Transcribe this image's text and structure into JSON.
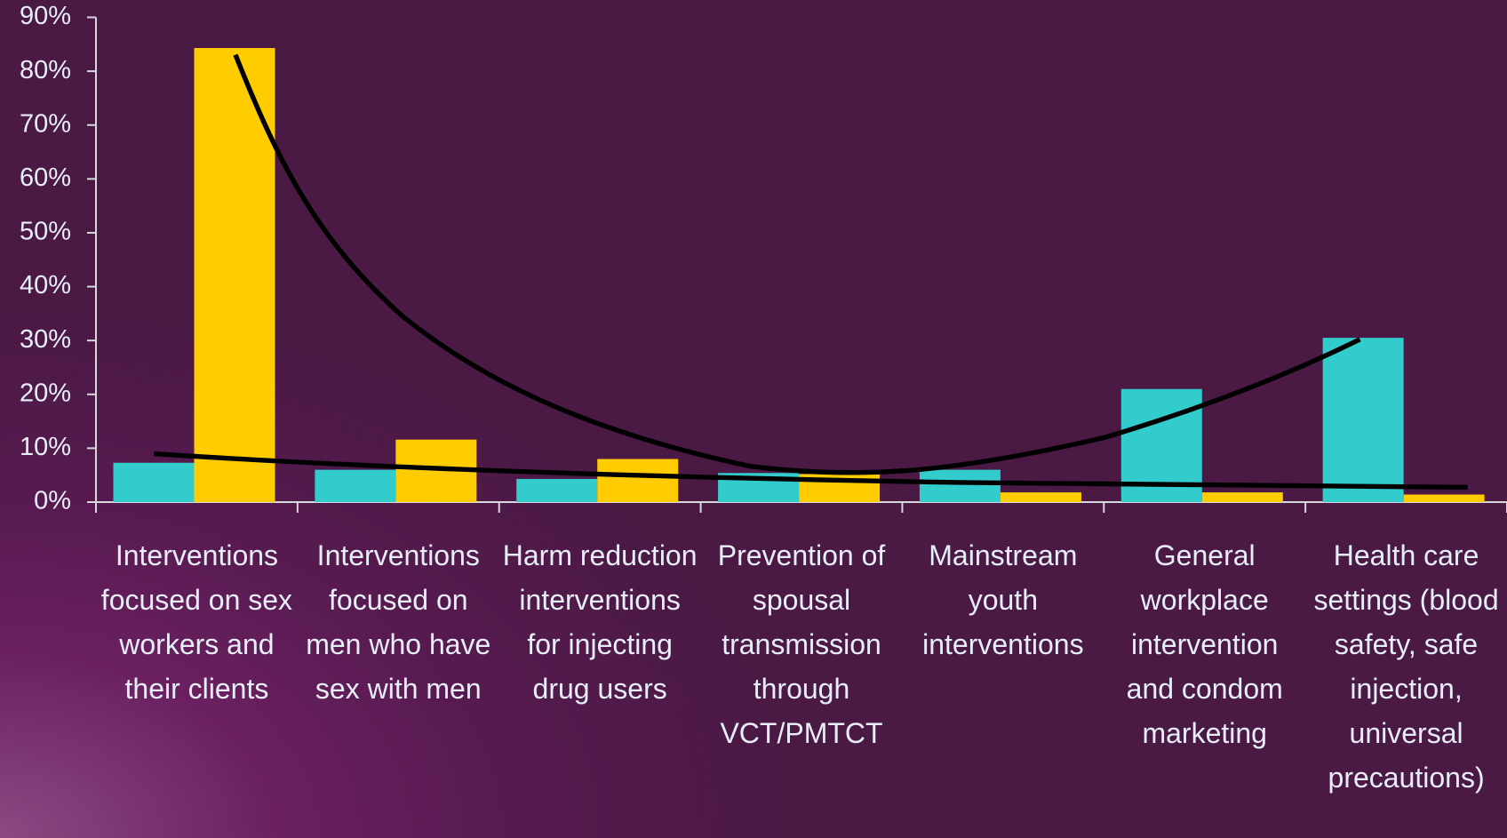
{
  "chart_data": {
    "type": "bar",
    "categories": [
      "Interventions focused on sex workers and their clients",
      "Interventions focused on men who have sex with men",
      "Harm reduction interventions for injecting drug users",
      "Prevention of spousal transmission through VCT/PMTCT",
      "Mainstream youth interventions",
      "General workplace intervention and condom marketing",
      "Health care settings (blood safety, safe injection, universal precautions)"
    ],
    "series": [
      {
        "color": "#33cccc",
        "values": [
          7.3,
          6,
          4.3,
          5.4,
          6,
          21,
          30.5
        ]
      },
      {
        "color": "#ffcc00",
        "values": [
          84.3,
          11.6,
          8,
          5.2,
          1.8,
          1.8,
          1.4
        ]
      }
    ],
    "ylim": [
      0,
      90
    ],
    "yticks": [
      {
        "value": 0,
        "label": "0%"
      },
      {
        "value": 10,
        "label": "10%"
      },
      {
        "value": 20,
        "label": "20%"
      },
      {
        "value": 30,
        "label": "30%"
      },
      {
        "value": 40,
        "label": "40%"
      },
      {
        "value": 50,
        "label": "50%"
      },
      {
        "value": 60,
        "label": "60%"
      },
      {
        "value": 70,
        "label": "70%"
      },
      {
        "value": 80,
        "label": "80%"
      },
      {
        "value": 90,
        "label": "90%"
      }
    ],
    "grid": false
  }
}
